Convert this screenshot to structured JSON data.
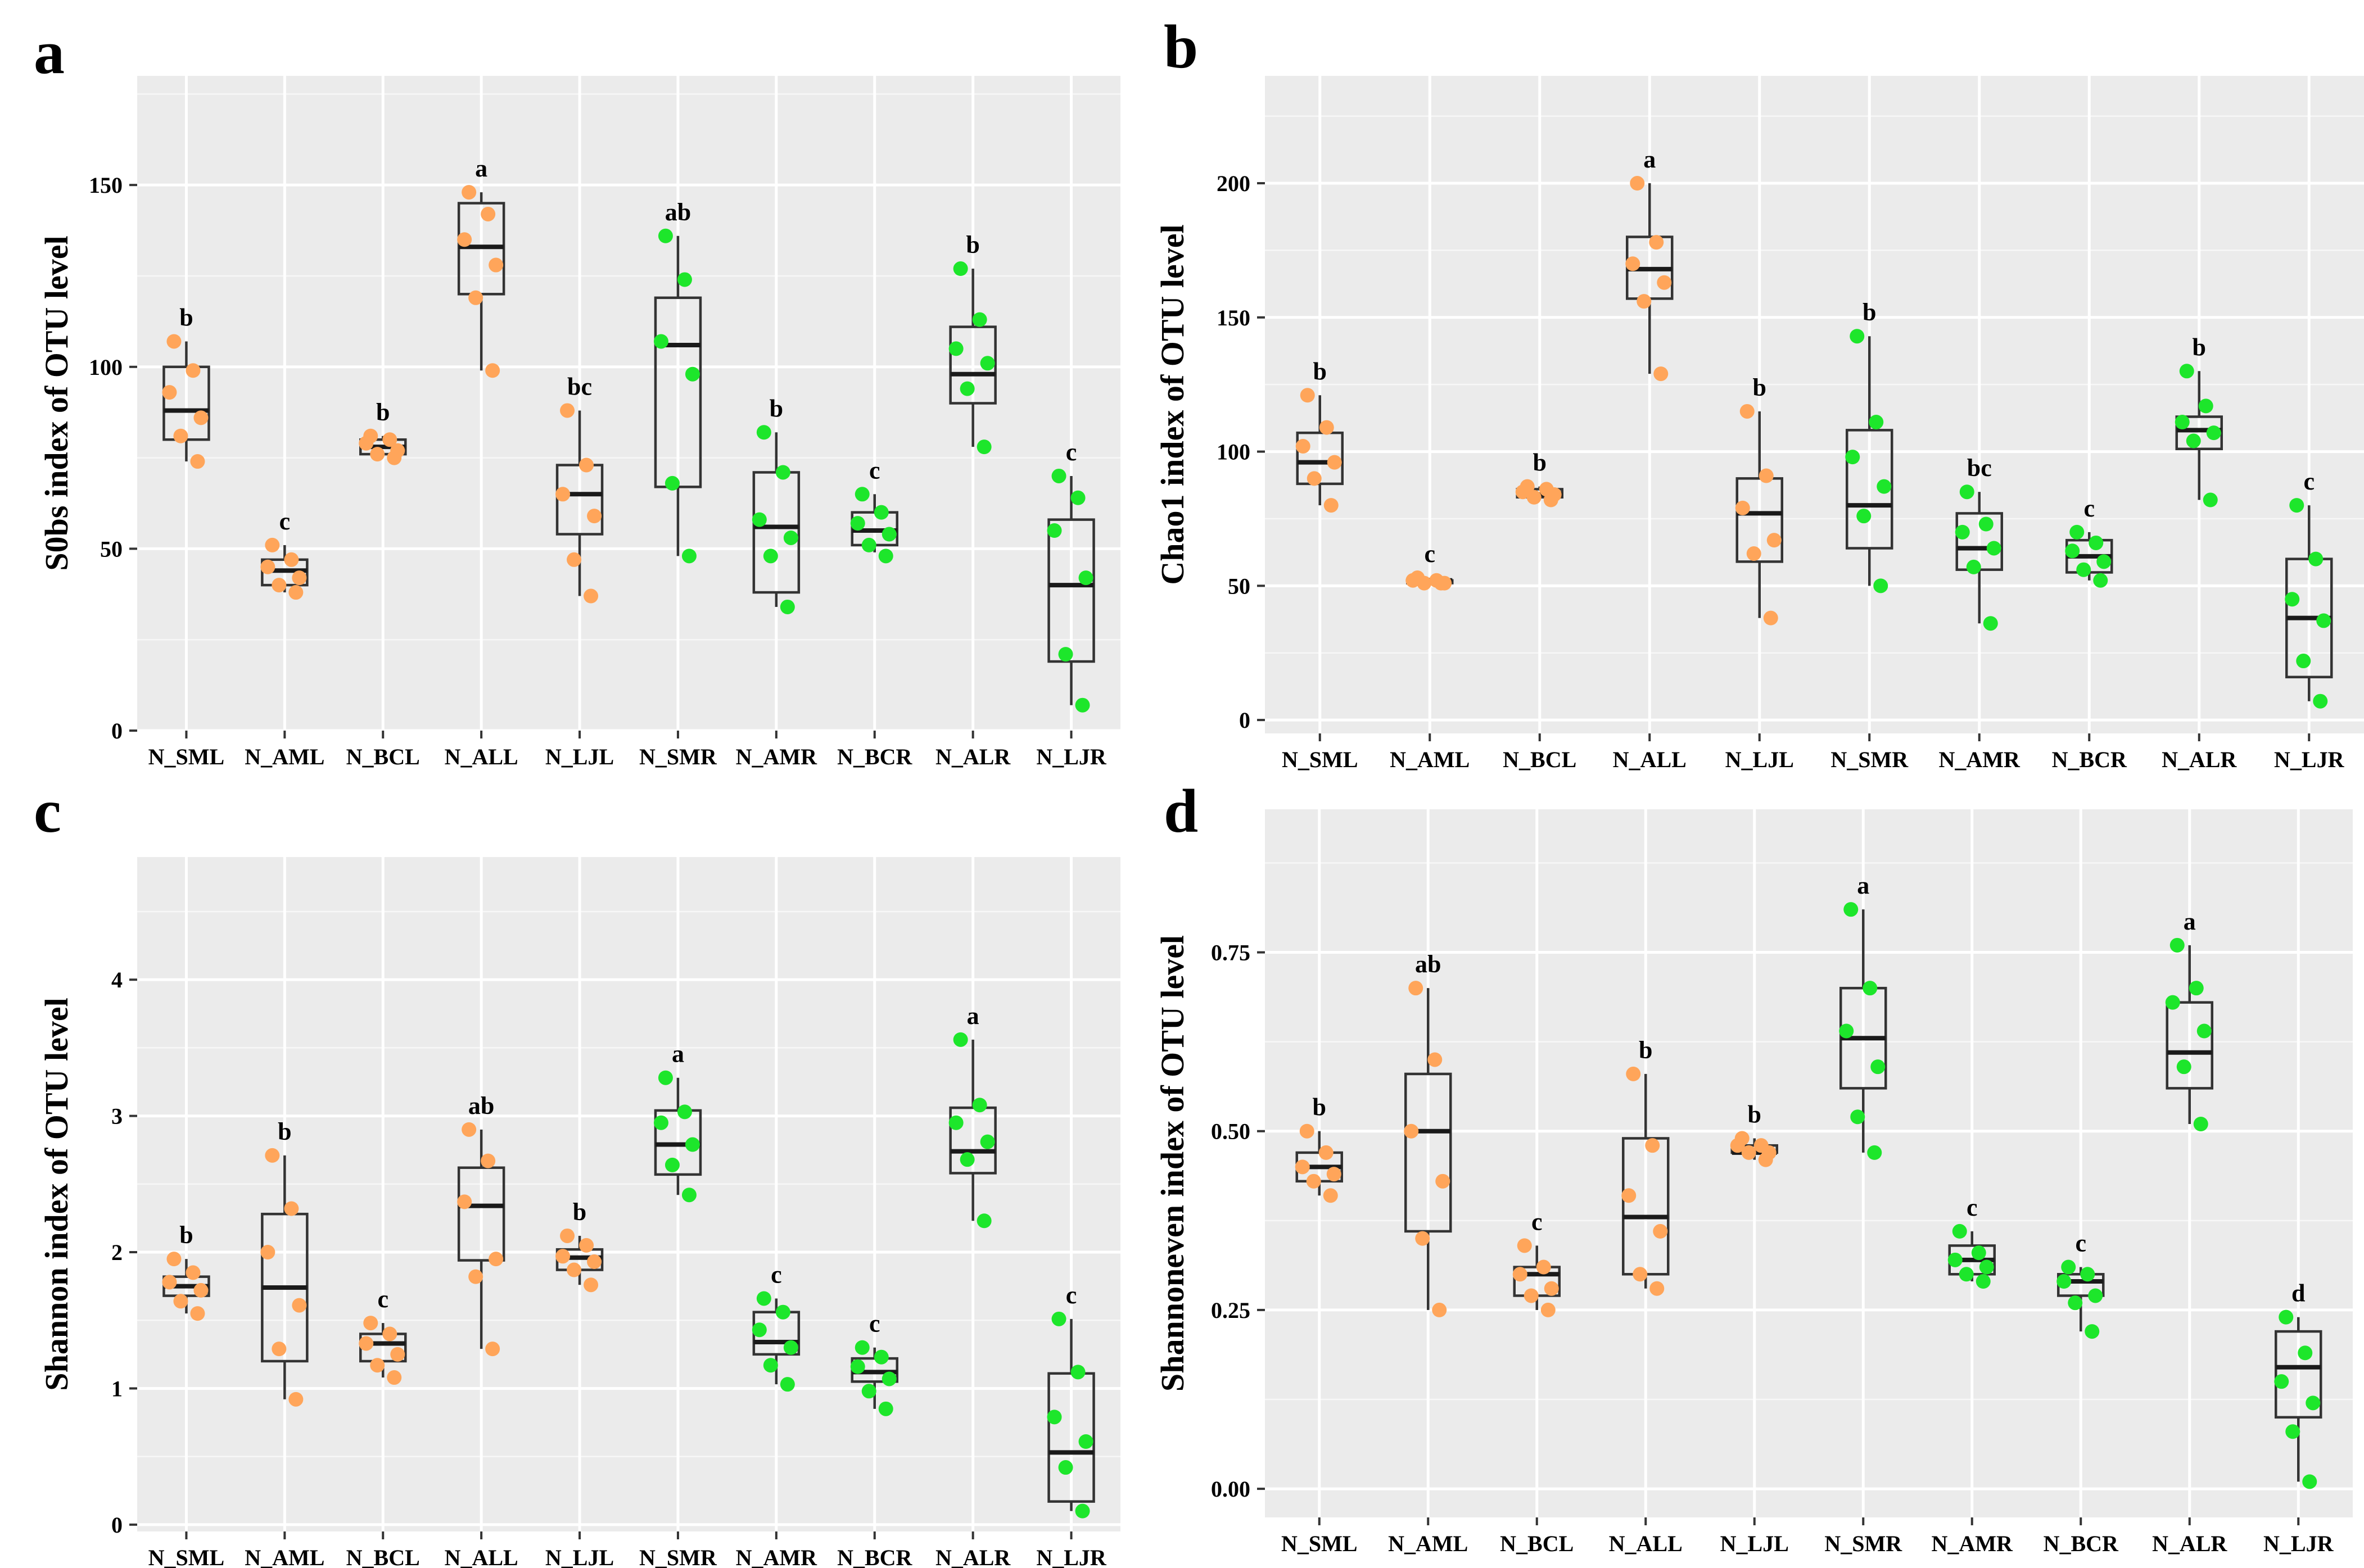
{
  "colors": {
    "orange": "#ffa55a",
    "green": "#1de62b",
    "panel_bg": "#ebebeb"
  },
  "chart_data": [
    {
      "panel": "a",
      "type": "boxplot",
      "ylabel": "S0bs index of OTU level",
      "ylim": [
        0,
        180
      ],
      "ytick_values": [
        0,
        50,
        100,
        150
      ],
      "ytick_labels": [
        "0",
        "50",
        "100",
        "150"
      ],
      "categories": [
        "N_SML",
        "N_AML",
        "N_BCL",
        "N_ALL",
        "N_LJL",
        "N_SMR",
        "N_AMR",
        "N_BCR",
        "N_ALR",
        "N_LJR"
      ],
      "tissue_color": [
        "orange",
        "orange",
        "orange",
        "orange",
        "orange",
        "green",
        "green",
        "green",
        "green",
        "green"
      ],
      "significance": [
        "b",
        "c",
        "b",
        "a",
        "bc",
        "ab",
        "b",
        "c",
        "b",
        "c"
      ],
      "boxes": [
        {
          "min": 74,
          "q1": 80,
          "median": 88,
          "q3": 100,
          "max": 107
        },
        {
          "min": 38,
          "q1": 40,
          "median": 44,
          "q3": 47,
          "max": 51
        },
        {
          "min": 76,
          "q1": 76,
          "median": 78,
          "q3": 80,
          "max": 81
        },
        {
          "min": 99,
          "q1": 120,
          "median": 133,
          "q3": 145,
          "max": 148
        },
        {
          "min": 37,
          "q1": 54,
          "median": 65,
          "q3": 73,
          "max": 88
        },
        {
          "min": 48,
          "q1": 67,
          "median": 106,
          "q3": 119,
          "max": 136
        },
        {
          "min": 34,
          "q1": 38,
          "median": 56,
          "q3": 71,
          "max": 82
        },
        {
          "min": 49,
          "q1": 51,
          "median": 55,
          "q3": 60,
          "max": 65
        },
        {
          "min": 78,
          "q1": 90,
          "median": 98,
          "q3": 111,
          "max": 127
        },
        {
          "min": 7,
          "q1": 19,
          "median": 40,
          "q3": 58,
          "max": 70
        }
      ],
      "points": [
        [
          107,
          99,
          93,
          86,
          81,
          74
        ],
        [
          51,
          47,
          45,
          42,
          40,
          38
        ],
        [
          81,
          80,
          79,
          77,
          76,
          75
        ],
        [
          148,
          142,
          135,
          128,
          119,
          99
        ],
        [
          88,
          73,
          65,
          59,
          47,
          37
        ],
        [
          136,
          124,
          107,
          98,
          68,
          48
        ],
        [
          82,
          71,
          58,
          53,
          48,
          34
        ],
        [
          65,
          60,
          57,
          54,
          51,
          48
        ],
        [
          127,
          113,
          105,
          101,
          94,
          78
        ],
        [
          70,
          64,
          55,
          42,
          21,
          7
        ]
      ]
    },
    {
      "panel": "b",
      "type": "boxplot",
      "ylabel": "Chao1 index of OTU level",
      "ylim": [
        -5,
        240
      ],
      "ytick_values": [
        0,
        50,
        100,
        150,
        200
      ],
      "ytick_labels": [
        "0",
        "50",
        "100",
        "150",
        "200"
      ],
      "categories": [
        "N_SML",
        "N_AML",
        "N_BCL",
        "N_ALL",
        "N_LJL",
        "N_SMR",
        "N_AMR",
        "N_BCR",
        "N_ALR",
        "N_LJR"
      ],
      "tissue_color": [
        "orange",
        "orange",
        "orange",
        "orange",
        "orange",
        "green",
        "green",
        "green",
        "green",
        "green"
      ],
      "significance": [
        "b",
        "c",
        "b",
        "a",
        "b",
        "b",
        "bc",
        "c",
        "b",
        "c"
      ],
      "boxes": [
        {
          "min": 80,
          "q1": 88,
          "median": 96,
          "q3": 107,
          "max": 121
        },
        {
          "min": 51,
          "q1": 51,
          "median": 52,
          "q3": 52,
          "max": 53
        },
        {
          "min": 82,
          "q1": 83,
          "median": 84,
          "q3": 86,
          "max": 87
        },
        {
          "min": 129,
          "q1": 157,
          "median": 168,
          "q3": 180,
          "max": 200
        },
        {
          "min": 38,
          "q1": 59,
          "median": 77,
          "q3": 90,
          "max": 115
        },
        {
          "min": 50,
          "q1": 64,
          "median": 80,
          "q3": 108,
          "max": 143
        },
        {
          "min": 36,
          "q1": 56,
          "median": 64,
          "q3": 77,
          "max": 85
        },
        {
          "min": 52,
          "q1": 55,
          "median": 61,
          "q3": 67,
          "max": 70
        },
        {
          "min": 82,
          "q1": 101,
          "median": 108,
          "q3": 113,
          "max": 130
        },
        {
          "min": 7,
          "q1": 16,
          "median": 38,
          "q3": 60,
          "max": 80
        }
      ],
      "points": [
        [
          121,
          109,
          102,
          96,
          90,
          80
        ],
        [
          53,
          52,
          52,
          51,
          51,
          51
        ],
        [
          87,
          86,
          85,
          84,
          83,
          82
        ],
        [
          200,
          178,
          170,
          163,
          156,
          129
        ],
        [
          115,
          91,
          79,
          67,
          62,
          38
        ],
        [
          143,
          111,
          98,
          87,
          76,
          50
        ],
        [
          85,
          73,
          70,
          64,
          57,
          36
        ],
        [
          70,
          66,
          63,
          59,
          56,
          52
        ],
        [
          130,
          117,
          111,
          107,
          104,
          82
        ],
        [
          80,
          60,
          45,
          37,
          22,
          7
        ]
      ]
    },
    {
      "panel": "c",
      "type": "boxplot",
      "ylabel": "Shannon index of OTU level",
      "ylim": [
        -0.05,
        4.9
      ],
      "ytick_values": [
        0,
        1,
        2,
        3,
        4
      ],
      "ytick_labels": [
        "0",
        "1",
        "2",
        "3",
        "4"
      ],
      "categories": [
        "N_SML",
        "N_AML",
        "N_BCL",
        "N_ALL",
        "N_LJL",
        "N_SMR",
        "N_AMR",
        "N_BCR",
        "N_ALR",
        "N_LJR"
      ],
      "tissue_color": [
        "orange",
        "orange",
        "orange",
        "orange",
        "orange",
        "green",
        "green",
        "green",
        "green",
        "green"
      ],
      "significance": [
        "b",
        "b",
        "c",
        "ab",
        "b",
        "a",
        "c",
        "c",
        "a",
        "c"
      ],
      "boxes": [
        {
          "min": 1.55,
          "q1": 1.68,
          "median": 1.75,
          "q3": 1.82,
          "max": 1.95
        },
        {
          "min": 0.92,
          "q1": 1.2,
          "median": 1.74,
          "q3": 2.28,
          "max": 2.71
        },
        {
          "min": 1.08,
          "q1": 1.2,
          "median": 1.33,
          "q3": 1.4,
          "max": 1.48
        },
        {
          "min": 1.29,
          "q1": 1.94,
          "median": 2.34,
          "q3": 2.62,
          "max": 2.9
        },
        {
          "min": 1.76,
          "q1": 1.87,
          "median": 1.96,
          "q3": 2.02,
          "max": 2.12
        },
        {
          "min": 2.42,
          "q1": 2.57,
          "median": 2.79,
          "q3": 3.04,
          "max": 3.28
        },
        {
          "min": 1.03,
          "q1": 1.25,
          "median": 1.34,
          "q3": 1.56,
          "max": 1.66
        },
        {
          "min": 0.85,
          "q1": 1.05,
          "median": 1.12,
          "q3": 1.22,
          "max": 1.3
        },
        {
          "min": 2.23,
          "q1": 2.58,
          "median": 2.74,
          "q3": 3.06,
          "max": 3.56
        },
        {
          "min": 0.1,
          "q1": 0.17,
          "median": 0.53,
          "q3": 1.11,
          "max": 1.51
        }
      ],
      "points": [
        [
          1.95,
          1.85,
          1.78,
          1.72,
          1.64,
          1.55
        ],
        [
          2.71,
          2.32,
          2.0,
          1.61,
          1.29,
          0.92
        ],
        [
          1.48,
          1.4,
          1.33,
          1.25,
          1.17,
          1.08
        ],
        [
          2.9,
          2.67,
          2.37,
          1.95,
          1.82,
          1.29
        ],
        [
          2.12,
          2.05,
          1.97,
          1.93,
          1.87,
          1.76
        ],
        [
          3.28,
          3.03,
          2.95,
          2.79,
          2.64,
          2.42
        ],
        [
          1.66,
          1.56,
          1.43,
          1.3,
          1.17,
          1.03
        ],
        [
          1.3,
          1.23,
          1.16,
          1.07,
          0.98,
          0.85
        ],
        [
          3.56,
          3.08,
          2.95,
          2.81,
          2.68,
          2.23
        ],
        [
          1.51,
          1.12,
          0.79,
          0.61,
          0.42,
          0.1
        ]
      ]
    },
    {
      "panel": "d",
      "type": "boxplot",
      "ylabel": "Shannoneven index of OTU level",
      "ylim": [
        -0.04,
        0.95
      ],
      "ytick_values": [
        0,
        0.25,
        0.5,
        0.75
      ],
      "ytick_labels": [
        "0.00",
        "0.25",
        "0.50",
        "0.75"
      ],
      "categories": [
        "N_SML",
        "N_AML",
        "N_BCL",
        "N_ALL",
        "N_LJL",
        "N_SMR",
        "N_AMR",
        "N_BCR",
        "N_ALR",
        "N_LJR"
      ],
      "tissue_color": [
        "orange",
        "orange",
        "orange",
        "orange",
        "orange",
        "green",
        "green",
        "green",
        "green",
        "green"
      ],
      "significance": [
        "b",
        "ab",
        "c",
        "b",
        "b",
        "a",
        "c",
        "c",
        "a",
        "d"
      ],
      "boxes": [
        {
          "min": 0.41,
          "q1": 0.43,
          "median": 0.45,
          "q3": 0.47,
          "max": 0.5
        },
        {
          "min": 0.25,
          "q1": 0.36,
          "median": 0.5,
          "q3": 0.58,
          "max": 0.7
        },
        {
          "min": 0.25,
          "q1": 0.27,
          "median": 0.3,
          "q3": 0.31,
          "max": 0.34
        },
        {
          "min": 0.28,
          "q1": 0.3,
          "median": 0.38,
          "q3": 0.49,
          "max": 0.58
        },
        {
          "min": 0.46,
          "q1": 0.47,
          "median": 0.47,
          "q3": 0.48,
          "max": 0.49
        },
        {
          "min": 0.47,
          "q1": 0.56,
          "median": 0.63,
          "q3": 0.7,
          "max": 0.81
        },
        {
          "min": 0.29,
          "q1": 0.3,
          "median": 0.32,
          "q3": 0.34,
          "max": 0.36
        },
        {
          "min": 0.22,
          "q1": 0.27,
          "median": 0.29,
          "q3": 0.3,
          "max": 0.31
        },
        {
          "min": 0.51,
          "q1": 0.56,
          "median": 0.61,
          "q3": 0.68,
          "max": 0.76
        },
        {
          "min": 0.01,
          "q1": 0.1,
          "median": 0.17,
          "q3": 0.22,
          "max": 0.24
        }
      ],
      "points": [
        [
          0.5,
          0.47,
          0.45,
          0.44,
          0.43,
          0.41
        ],
        [
          0.7,
          0.6,
          0.5,
          0.43,
          0.35,
          0.25
        ],
        [
          0.34,
          0.31,
          0.3,
          0.28,
          0.27,
          0.25
        ],
        [
          0.58,
          0.48,
          0.41,
          0.36,
          0.3,
          0.28
        ],
        [
          0.49,
          0.48,
          0.48,
          0.47,
          0.47,
          0.46
        ],
        [
          0.81,
          0.7,
          0.64,
          0.59,
          0.52,
          0.47
        ],
        [
          0.36,
          0.33,
          0.32,
          0.31,
          0.3,
          0.29
        ],
        [
          0.31,
          0.3,
          0.29,
          0.27,
          0.26,
          0.22
        ],
        [
          0.76,
          0.7,
          0.68,
          0.64,
          0.59,
          0.51
        ],
        [
          0.24,
          0.19,
          0.15,
          0.12,
          0.08,
          0.01
        ]
      ]
    }
  ]
}
